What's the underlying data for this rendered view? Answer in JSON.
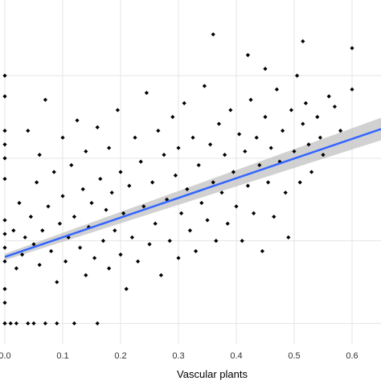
{
  "chart_data": {
    "type": "scatter",
    "title": "",
    "xlabel": "Vascular plants",
    "ylabel": "",
    "xlim": [
      0,
      0.65
    ],
    "ylim": [
      0,
      1
    ],
    "x_ticks": [
      0.0,
      0.1,
      0.2,
      0.3,
      0.4,
      0.5,
      0.6
    ],
    "x_tick_labels": [
      "0.0",
      "0.1",
      "0.2",
      "0.3",
      "0.4",
      "0.5",
      "0.6"
    ],
    "grid": true,
    "legend": "none",
    "colors": {
      "points": "#000000",
      "trend_line": "#3366ff",
      "confidence_band": "#bdbdbd",
      "grid": "#e5e5e5",
      "background": "#ffffff"
    },
    "trend_line": {
      "type": "linear",
      "x": [
        0.0,
        0.65
      ],
      "y": [
        0.253,
        0.625
      ],
      "confidence_band": true
    },
    "series": [
      {
        "values": [
          [
            0.0,
            0.06
          ],
          [
            0.0,
            0.06
          ],
          [
            0.0,
            0.12
          ],
          [
            0.0,
            0.16
          ],
          [
            0.0,
            0.24
          ],
          [
            0.0,
            0.28
          ],
          [
            0.0,
            0.32
          ],
          [
            0.0,
            0.36
          ],
          [
            0.0,
            0.48
          ],
          [
            0.0,
            0.54
          ],
          [
            0.0,
            0.58
          ],
          [
            0.0,
            0.62
          ],
          [
            0.0,
            0.72
          ],
          [
            0.0,
            0.78
          ],
          [
            0.01,
            0.06
          ],
          [
            0.015,
            0.33
          ],
          [
            0.02,
            0.06
          ],
          [
            0.02,
            0.22
          ],
          [
            0.025,
            0.41
          ],
          [
            0.03,
            0.26
          ],
          [
            0.035,
            0.31
          ],
          [
            0.04,
            0.06
          ],
          [
            0.04,
            0.62
          ],
          [
            0.045,
            0.37
          ],
          [
            0.05,
            0.06
          ],
          [
            0.05,
            0.29
          ],
          [
            0.055,
            0.47
          ],
          [
            0.06,
            0.23
          ],
          [
            0.06,
            0.55
          ],
          [
            0.065,
            0.33
          ],
          [
            0.07,
            0.06
          ],
          [
            0.07,
            0.71
          ],
          [
            0.075,
            0.4
          ],
          [
            0.08,
            0.27
          ],
          [
            0.085,
            0.5
          ],
          [
            0.09,
            0.06
          ],
          [
            0.09,
            0.18
          ],
          [
            0.095,
            0.35
          ],
          [
            0.1,
            0.43
          ],
          [
            0.1,
            0.6
          ],
          [
            0.105,
            0.24
          ],
          [
            0.11,
            0.31
          ],
          [
            0.115,
            0.52
          ],
          [
            0.12,
            0.06
          ],
          [
            0.12,
            0.37
          ],
          [
            0.125,
            0.65
          ],
          [
            0.13,
            0.28
          ],
          [
            0.135,
            0.45
          ],
          [
            0.14,
            0.2
          ],
          [
            0.14,
            0.56
          ],
          [
            0.145,
            0.34
          ],
          [
            0.15,
            0.41
          ],
          [
            0.155,
            0.25
          ],
          [
            0.16,
            0.06
          ],
          [
            0.16,
            0.63
          ],
          [
            0.165,
            0.48
          ],
          [
            0.17,
            0.3
          ],
          [
            0.175,
            0.39
          ],
          [
            0.18,
            0.22
          ],
          [
            0.18,
            0.57
          ],
          [
            0.185,
            0.44
          ],
          [
            0.19,
            0.33
          ],
          [
            0.195,
            0.68
          ],
          [
            0.2,
            0.26
          ],
          [
            0.2,
            0.5
          ],
          [
            0.205,
            0.38
          ],
          [
            0.21,
            0.16
          ],
          [
            0.215,
            0.46
          ],
          [
            0.22,
            0.31
          ],
          [
            0.225,
            0.6
          ],
          [
            0.23,
            0.24
          ],
          [
            0.235,
            0.53
          ],
          [
            0.24,
            0.4
          ],
          [
            0.245,
            0.73
          ],
          [
            0.25,
            0.29
          ],
          [
            0.255,
            0.47
          ],
          [
            0.26,
            0.35
          ],
          [
            0.265,
            0.62
          ],
          [
            0.27,
            0.2
          ],
          [
            0.275,
            0.55
          ],
          [
            0.28,
            0.42
          ],
          [
            0.285,
            0.3
          ],
          [
            0.29,
            0.66
          ],
          [
            0.295,
            0.49
          ],
          [
            0.3,
            0.25
          ],
          [
            0.3,
            0.57
          ],
          [
            0.305,
            0.38
          ],
          [
            0.31,
            0.7
          ],
          [
            0.315,
            0.45
          ],
          [
            0.32,
            0.33
          ],
          [
            0.325,
            0.6
          ],
          [
            0.33,
            0.27
          ],
          [
            0.335,
            0.52
          ],
          [
            0.34,
            0.41
          ],
          [
            0.345,
            0.75
          ],
          [
            0.35,
            0.36
          ],
          [
            0.355,
            0.58
          ],
          [
            0.36,
            0.47
          ],
          [
            0.365,
            0.3
          ],
          [
            0.37,
            0.64
          ],
          [
            0.375,
            0.44
          ],
          [
            0.38,
            0.55
          ],
          [
            0.385,
            0.35
          ],
          [
            0.39,
            0.68
          ],
          [
            0.395,
            0.5
          ],
          [
            0.4,
            0.4
          ],
          [
            0.405,
            0.61
          ],
          [
            0.41,
            0.3
          ],
          [
            0.415,
            0.56
          ],
          [
            0.42,
            0.46
          ],
          [
            0.425,
            0.71
          ],
          [
            0.43,
            0.38
          ],
          [
            0.435,
            0.6
          ],
          [
            0.44,
            0.52
          ],
          [
            0.445,
            0.27
          ],
          [
            0.45,
            0.66
          ],
          [
            0.455,
            0.47
          ],
          [
            0.46,
            0.57
          ],
          [
            0.465,
            0.37
          ],
          [
            0.47,
            0.74
          ],
          [
            0.475,
            0.53
          ],
          [
            0.48,
            0.62
          ],
          [
            0.485,
            0.44
          ],
          [
            0.49,
            0.31
          ],
          [
            0.495,
            0.68
          ],
          [
            0.5,
            0.56
          ],
          [
            0.505,
            0.78
          ],
          [
            0.51,
            0.47
          ],
          [
            0.515,
            0.64
          ],
          [
            0.52,
            0.7
          ],
          [
            0.525,
            0.58
          ],
          [
            0.53,
            0.5
          ],
          [
            0.54,
            0.66
          ],
          [
            0.545,
            0.6
          ],
          [
            0.55,
            0.55
          ],
          [
            0.56,
            0.72
          ],
          [
            0.57,
            0.69
          ],
          [
            0.58,
            0.62
          ],
          [
            0.6,
            0.74
          ],
          [
            0.515,
            0.88
          ],
          [
            0.45,
            0.8
          ],
          [
            0.6,
            0.86
          ],
          [
            0.36,
            0.9
          ],
          [
            0.42,
            0.84
          ]
        ]
      }
    ]
  }
}
